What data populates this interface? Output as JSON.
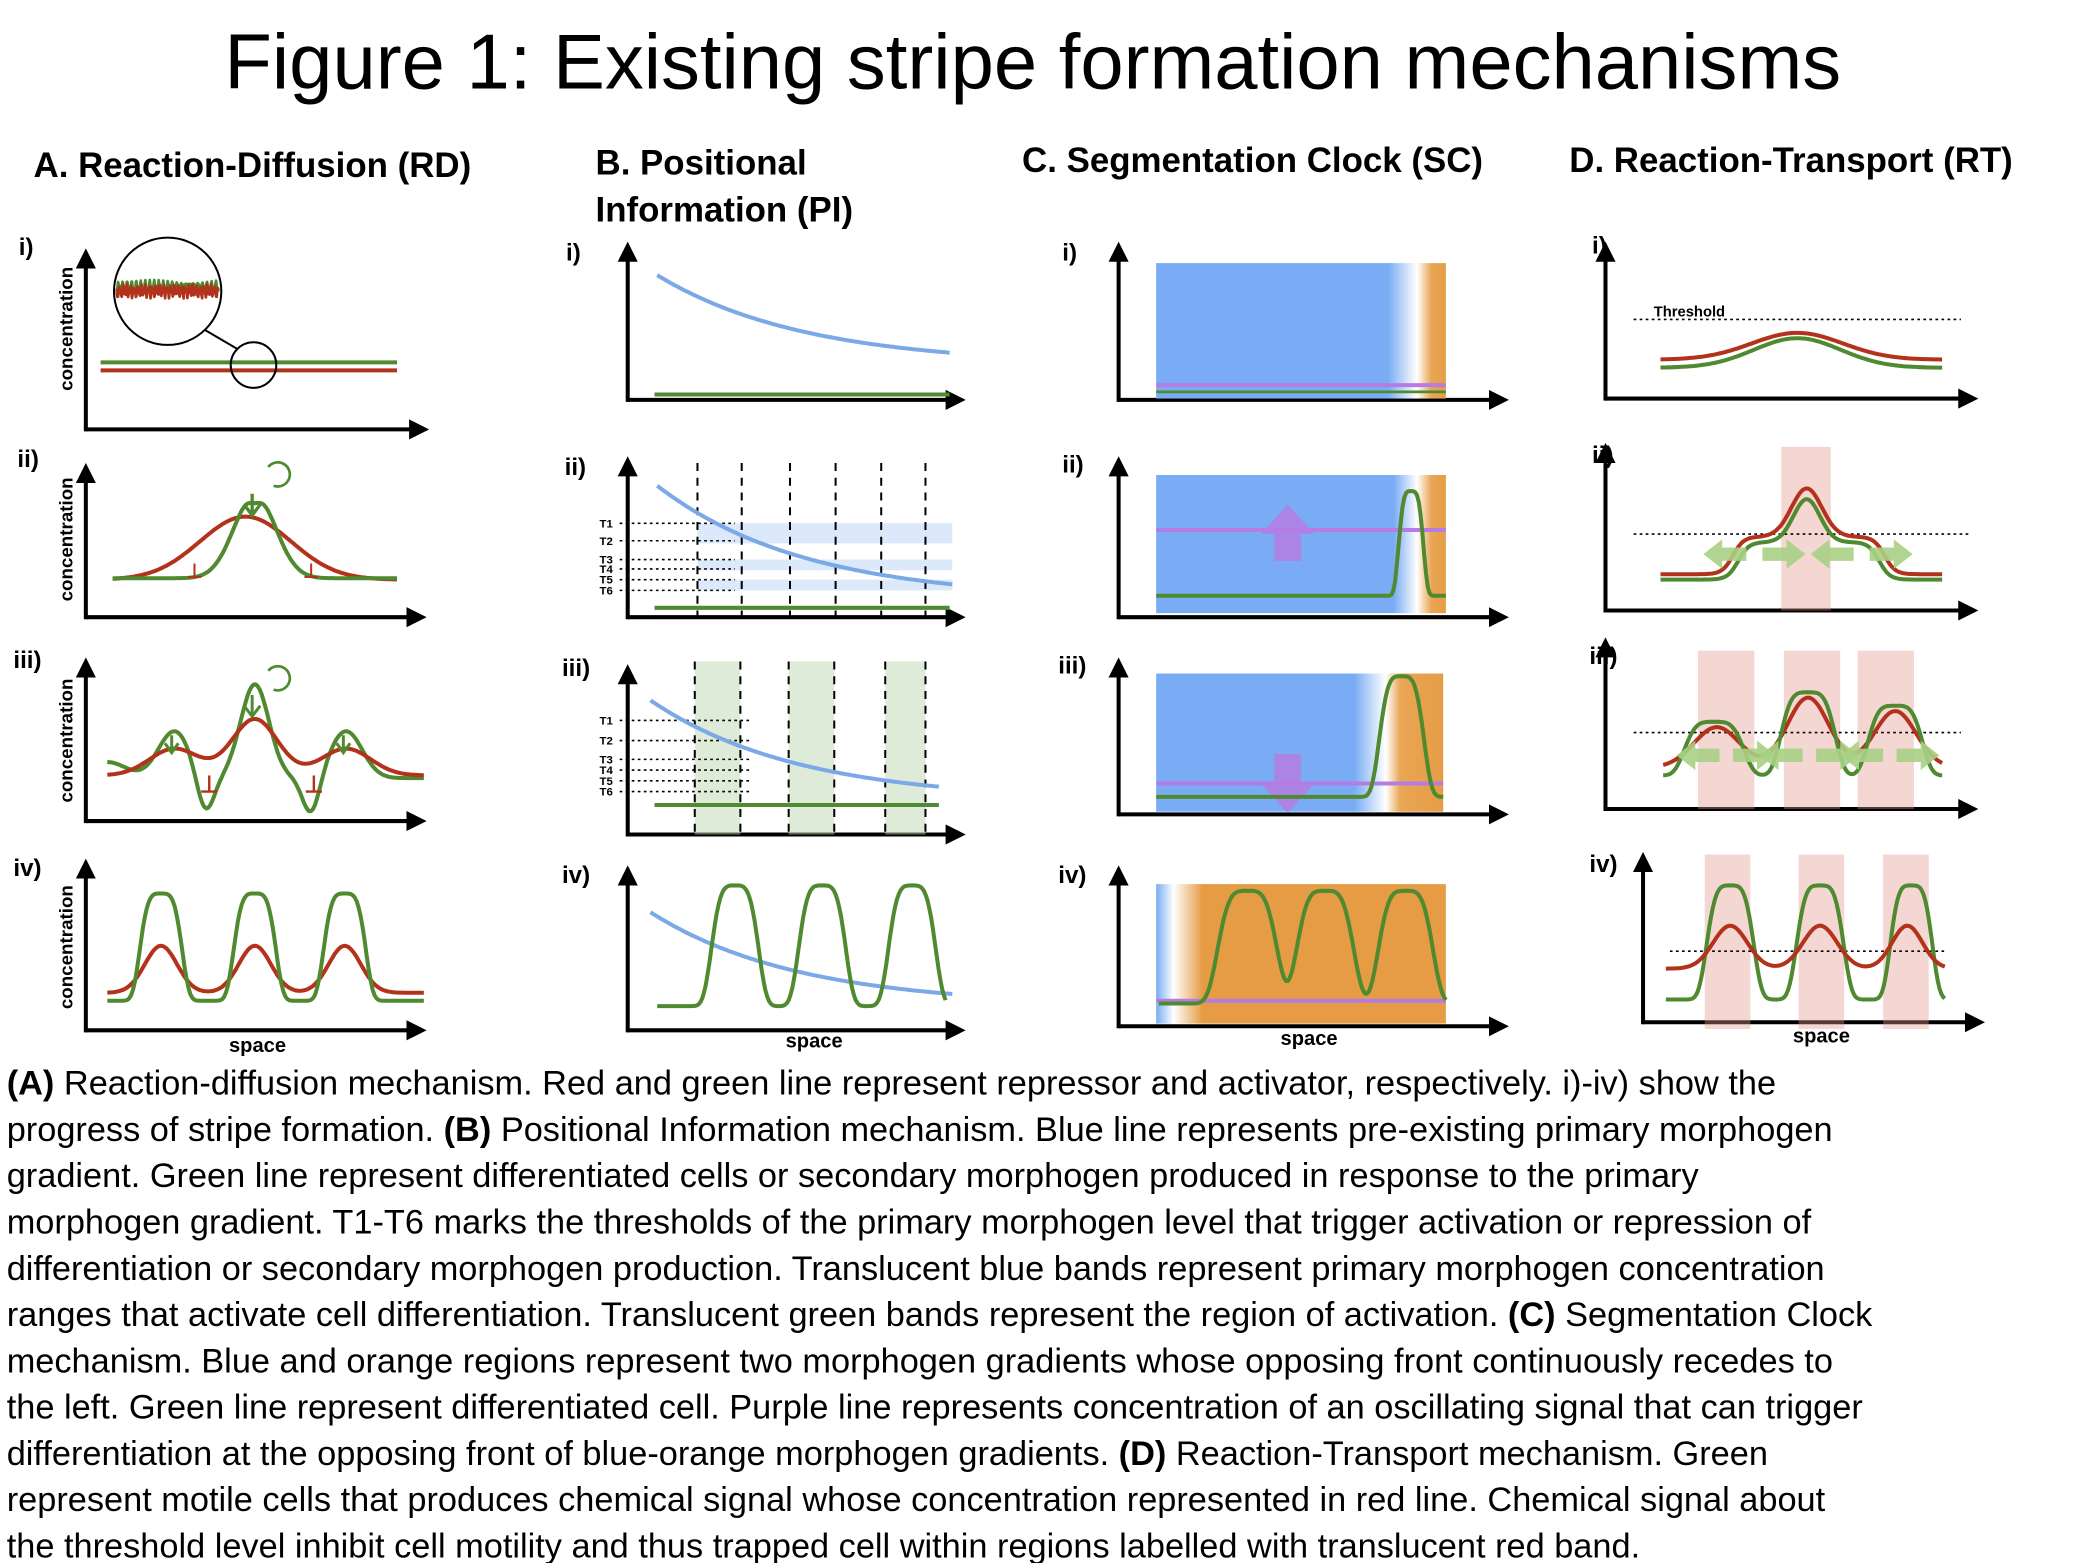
{
  "title": "Figure 1: Existing stripe formation mechanisms",
  "panels": [
    {
      "heading": [
        "A. Reaction-Diffusion (RD)"
      ],
      "rows": [
        "i)",
        "ii)",
        "iii)",
        "iv)"
      ],
      "y_label": "concentration",
      "x_label": "space"
    },
    {
      "heading": [
        "B. Positional",
        "Information (PI)"
      ],
      "rows": [
        "i)",
        "ii)",
        "iii)",
        "iv)"
      ],
      "x_label": "space",
      "thresholds": [
        "T1",
        "T2",
        "T3",
        "T4",
        "T5",
        "T6"
      ]
    },
    {
      "heading": [
        "C. Segmentation Clock (SC)"
      ],
      "rows": [
        "i)",
        "ii)",
        "iii)",
        "iv)"
      ],
      "x_label": "space"
    },
    {
      "heading": [
        "D. Reaction-Transport (RT)"
      ],
      "rows": [
        "i)",
        "ii)",
        "iii)",
        "iv)"
      ],
      "x_label": "space",
      "threshold": "Threshold"
    }
  ],
  "caption": {
    "lines": [
      [
        {
          "text": "(A)",
          "bold": true
        },
        {
          "text": " Reaction-diffusion mechanism. Red and green line represent repressor and activator, respectively. i)-iv) show the",
          "bold": false
        }
      ],
      [
        {
          "text": "progress of stripe formation. ",
          "bold": false
        },
        {
          "text": "(B)",
          "bold": true
        },
        {
          "text": " Positional Information mechanism. Blue line represents pre-existing primary morphogen",
          "bold": false
        }
      ],
      [
        {
          "text": "gradient. Green line represent differentiated cells or secondary morphogen produced in response to the primary",
          "bold": false
        }
      ],
      [
        {
          "text": "morphogen gradient. T1-T6 marks the thresholds of the primary morphogen level that trigger activation or repression of",
          "bold": false
        }
      ],
      [
        {
          "text": "differentiation or secondary morphogen production. Translucent blue bands represent primary morphogen concentration",
          "bold": false
        }
      ],
      [
        {
          "text": "ranges that activate cell differentiation. Translucent green bands represent the region of activation. ",
          "bold": false
        },
        {
          "text": "(C)",
          "bold": true
        },
        {
          "text": " Segmentation Clock",
          "bold": false
        }
      ],
      [
        {
          "text": "mechanism. Blue and orange regions represent two morphogen gradients whose opposing front continuously recedes to",
          "bold": false
        }
      ],
      [
        {
          "text": "the left. Green line represent differentiated cell. Purple line represents concentration of an oscillating signal that can trigger",
          "bold": false
        }
      ],
      [
        {
          "text": "differentiation at the opposing front of blue-orange morphogen gradients. ",
          "bold": false
        },
        {
          "text": "(D)",
          "bold": true
        },
        {
          "text": " Reaction-Transport mechanism. Green",
          "bold": false
        }
      ],
      [
        {
          "text": "represent motile cells that produces chemical signal whose concentration represented in red line. Chemical signal about",
          "bold": false
        }
      ],
      [
        {
          "text": "the threshold level inhibit cell motility and thus trapped cell within regions labelled with translucent red band.",
          "bold": false
        }
      ]
    ]
  }
}
